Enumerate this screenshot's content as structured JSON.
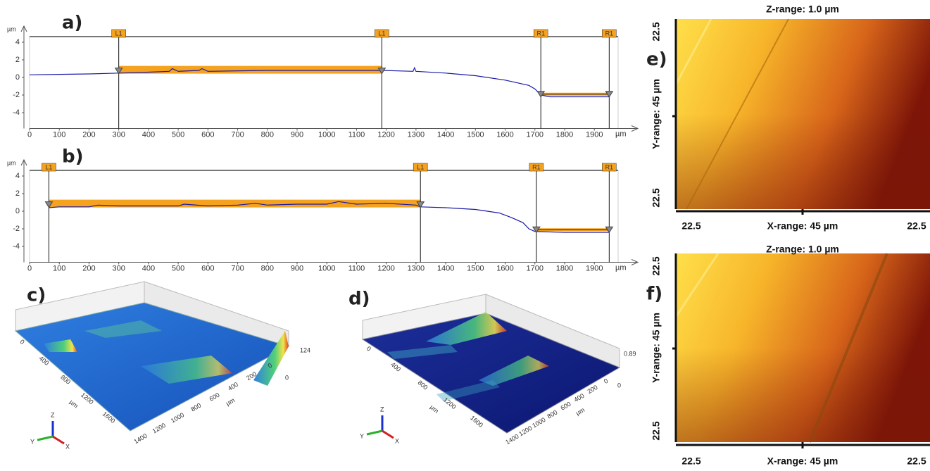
{
  "chart_data": [
    {
      "type": "line",
      "label": "a)",
      "x_unit": "µm",
      "y_unit": "µm",
      "color": "#1a1aa8",
      "band_color": "#f5a21f",
      "xlim": [
        0,
        1980
      ],
      "ylim": [
        -5.8,
        4.8
      ],
      "xticks": [
        0,
        100,
        200,
        300,
        400,
        500,
        600,
        700,
        800,
        900,
        1000,
        1100,
        1200,
        1300,
        1400,
        1500,
        1600,
        1700,
        1800,
        1900
      ],
      "yticks": [
        -4,
        -2,
        0,
        2,
        4
      ],
      "x": [
        0,
        100,
        200,
        300,
        400,
        470,
        480,
        500,
        570,
        580,
        600,
        700,
        800,
        900,
        1000,
        1100,
        1185,
        1290,
        1295,
        1300,
        1400,
        1500,
        1600,
        1680,
        1700,
        1720,
        1750,
        1800,
        1900,
        1950
      ],
      "values": [
        0.3,
        0.35,
        0.4,
        0.5,
        0.6,
        0.7,
        1.0,
        0.7,
        0.8,
        1.0,
        0.7,
        0.75,
        0.8,
        0.8,
        0.8,
        0.8,
        0.8,
        0.7,
        1.1,
        0.7,
        0.5,
        0.2,
        -0.3,
        -0.9,
        -1.3,
        -2.0,
        -2.2,
        -2.2,
        -2.2,
        -2.2
      ],
      "markers": [
        {
          "label": "L1",
          "x": 300,
          "y": 0.75
        },
        {
          "label": "L1",
          "x": 1185,
          "y": 0.75
        },
        {
          "label": "R1",
          "x": 1720,
          "y": -1.9
        },
        {
          "label": "R1",
          "x": 1950,
          "y": -1.9
        }
      ]
    },
    {
      "type": "line",
      "label": "b)",
      "x_unit": "µm",
      "y_unit": "µm",
      "color": "#1a1aa8",
      "band_color": "#f5a21f",
      "xlim": [
        0,
        1980
      ],
      "ylim": [
        -5.8,
        4.8
      ],
      "xticks": [
        0,
        100,
        200,
        300,
        400,
        500,
        600,
        700,
        800,
        900,
        1000,
        1100,
        1200,
        1300,
        1400,
        1500,
        1600,
        1700,
        1800,
        1900
      ],
      "yticks": [
        -4,
        -2,
        0,
        2,
        4
      ],
      "x": [
        65,
        100,
        200,
        230,
        300,
        400,
        500,
        520,
        600,
        700,
        760,
        800,
        900,
        1000,
        1040,
        1100,
        1200,
        1300,
        1315,
        1400,
        1500,
        1580,
        1620,
        1660,
        1680,
        1700,
        1800,
        1950
      ],
      "values": [
        0.4,
        0.5,
        0.5,
        0.7,
        0.6,
        0.6,
        0.6,
        0.8,
        0.6,
        0.7,
        0.9,
        0.7,
        0.8,
        0.8,
        1.1,
        0.8,
        0.9,
        0.7,
        0.5,
        0.4,
        0.2,
        -0.2,
        -0.7,
        -1.3,
        -2.0,
        -2.3,
        -2.4,
        -2.4
      ],
      "markers": [
        {
          "label": "L1",
          "x": 65,
          "y": 0.75
        },
        {
          "label": "L1",
          "x": 1315,
          "y": 0.75
        },
        {
          "label": "R1",
          "x": 1705,
          "y": -2.1
        },
        {
          "label": "R1",
          "x": 1950,
          "y": -2.1
        }
      ]
    }
  ],
  "panels": {
    "c": {
      "label": "c)",
      "z_max": "124",
      "left_ticks": [
        "0",
        "400",
        "800",
        "1200",
        "1600"
      ],
      "left_unit": "µm",
      "bottom_ticks": [
        "1400",
        "1200",
        "1000",
        "800",
        "600",
        "400",
        "200",
        "0"
      ],
      "bottom_unit": "µm",
      "z_min": "0",
      "axes": [
        "Z",
        "Y",
        "X"
      ]
    },
    "d": {
      "label": "d)",
      "z_max": "0.89",
      "left_ticks": [
        "0",
        "400",
        "800",
        "1200",
        "1600"
      ],
      "left_unit": "µm",
      "bottom_ticks": [
        "1400",
        "1200",
        "1000",
        "800",
        "600",
        "400",
        "200",
        "0"
      ],
      "bottom_unit": "µm",
      "z_min": "0",
      "axes": [
        "Z",
        "Y",
        "X"
      ]
    },
    "e": {
      "label": "e)",
      "title": "Z-range: 1.0 µm",
      "y_label": "Y-range: 45 µm",
      "y_top": "22.5",
      "y_bottom": "22.5",
      "x_left": "22.5",
      "x_label": "X-range: 45 µm",
      "x_right": "22.5"
    },
    "f": {
      "label": "f)",
      "title": "Z-range: 1.0 µm",
      "y_label": "Y-range: 45 µm",
      "y_top": "22.5",
      "y_bottom": "22.5",
      "x_left": "22.5",
      "x_label": "X-range: 45 µm",
      "x_right": "22.5"
    }
  }
}
